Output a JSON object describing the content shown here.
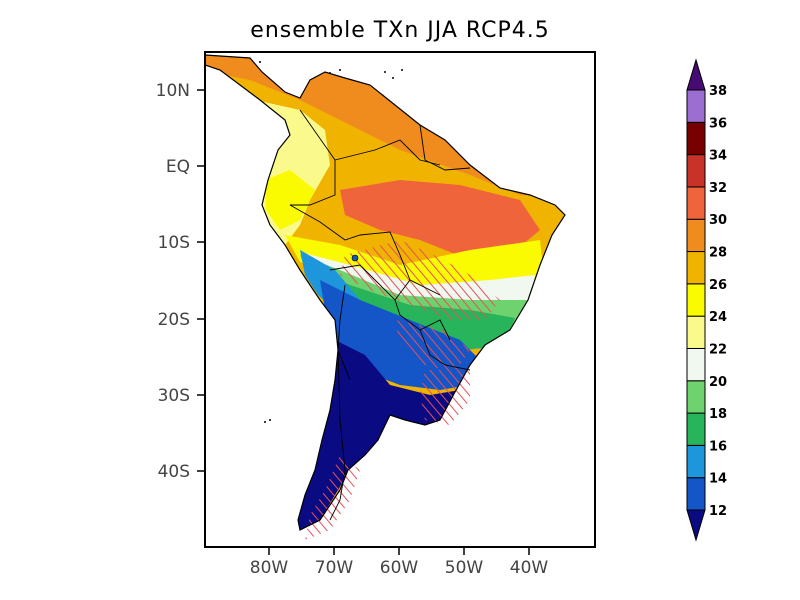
{
  "title": "ensemble TXn JJA RCP4.5",
  "lat_ticks": [
    "10N",
    "EQ",
    "10S",
    "20S",
    "30S",
    "40S"
  ],
  "lon_ticks": [
    "80W",
    "70W",
    "60W",
    "50W",
    "40W"
  ],
  "colorbar": {
    "labels": [
      "12",
      "14",
      "16",
      "18",
      "20",
      "22",
      "24",
      "26",
      "28",
      "30",
      "32",
      "34",
      "36",
      "38"
    ],
    "colors": [
      "#0a0a82",
      "#1455c8",
      "#1e96dc",
      "#28b45a",
      "#6ed26e",
      "#f0f8f0",
      "#fafa8c",
      "#fafa00",
      "#f0b400",
      "#f08c1e",
      "#f0643c",
      "#c83228",
      "#780000",
      "#9c6ed2",
      "#460a73"
    ]
  }
}
